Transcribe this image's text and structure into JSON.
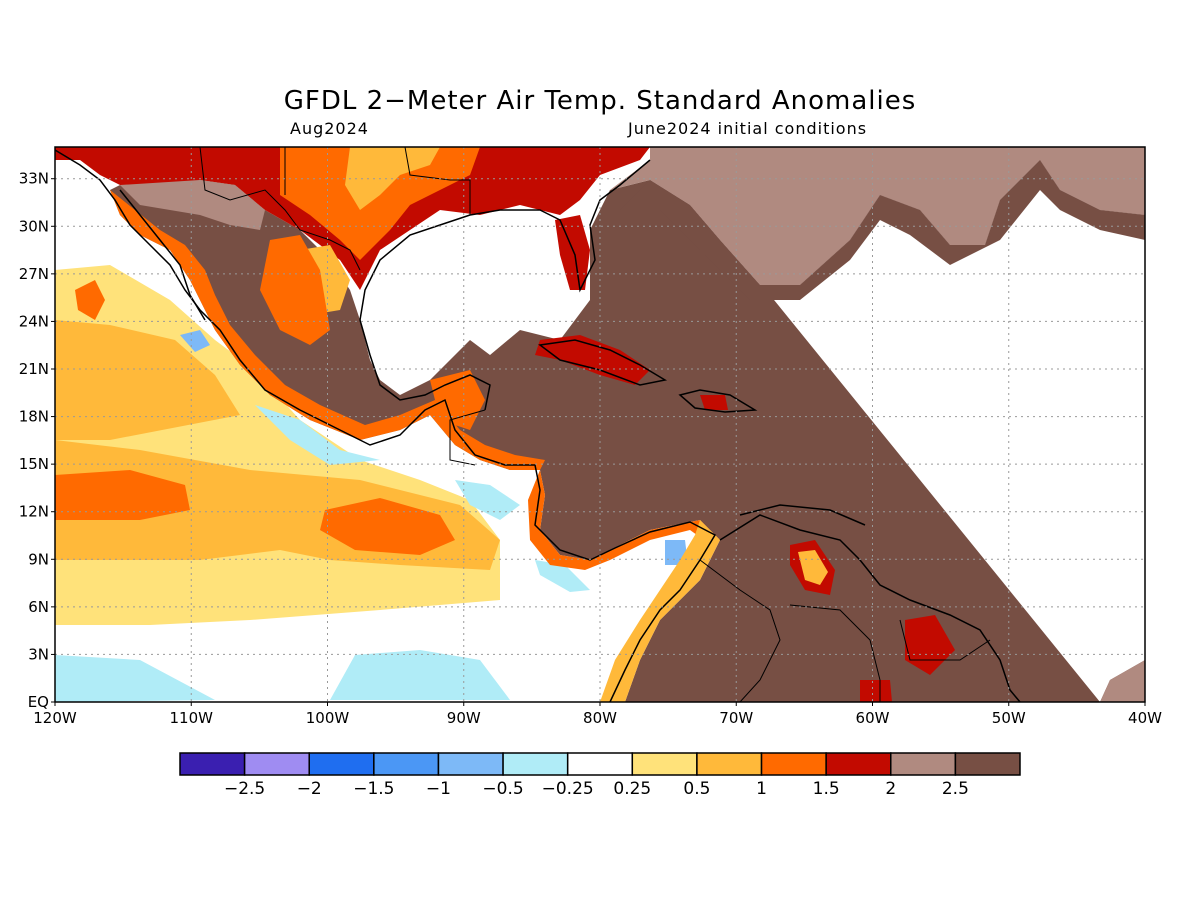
{
  "title": "GFDL 2−Meter Air Temp. Standard Anomalies",
  "subtitle_left": "Aug2024",
  "subtitle_right": "June2024 initial conditions",
  "map": {
    "lon_range": [
      -120,
      -40
    ],
    "lat_range": [
      0,
      35
    ],
    "lat_labels": [
      "EQ",
      "3N",
      "6N",
      "9N",
      "12N",
      "15N",
      "18N",
      "21N",
      "24N",
      "27N",
      "30N",
      "33N"
    ],
    "lon_labels": [
      "120W",
      "110W",
      "100W",
      "90W",
      "80W",
      "70W",
      "60W",
      "50W",
      "40W"
    ],
    "gridlines": "dotted"
  },
  "colorbar": {
    "tick_labels": [
      "−2.5",
      "−2",
      "−1.5",
      "−1",
      "−0.5",
      "−0.25",
      "0.25",
      "0.5",
      "1",
      "1.5",
      "2",
      "2.5"
    ],
    "colors": [
      "#3a1fb0",
      "#9f8cf2",
      "#1f6ef0",
      "#4b97f5",
      "#7db9f7",
      "#b0ecf7",
      "#ffffff",
      "#ffe27a",
      "#ffb93a",
      "#ff6a00",
      "#c20a00",
      "#b08a80",
      "#774f44"
    ]
  },
  "chart_data": {
    "type": "heatmap",
    "title": "GFDL 2−Meter Air Temp. Standard Anomalies",
    "subtitle": "Aug2024",
    "xlabel": "",
    "ylabel": "",
    "xlim": [
      -120,
      -40
    ],
    "ylim": [
      0,
      35
    ],
    "legend_bins": [
      -2.5,
      -2,
      -1.5,
      -1,
      -0.5,
      -0.25,
      0.25,
      0.5,
      1,
      1.5,
      2,
      2.5
    ]
  }
}
